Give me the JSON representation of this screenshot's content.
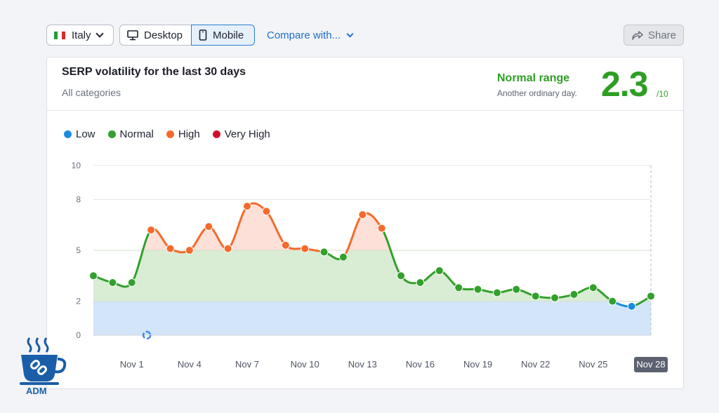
{
  "toolbar": {
    "country": "Italy",
    "device_options": [
      "Desktop",
      "Mobile"
    ],
    "selected_device": "Mobile",
    "compare_label": "Compare with...",
    "share_label": "Share"
  },
  "card": {
    "title": "SERP volatility for the last 30 days",
    "subtitle": "All categories",
    "range_label": "Normal range",
    "range_desc": "Another ordinary day.",
    "score": "2.3",
    "score_max": "/10"
  },
  "legend": [
    {
      "label": "Low",
      "color": "#1a8ce0"
    },
    {
      "label": "Normal",
      "color": "#32a02c"
    },
    {
      "label": "High",
      "color": "#f26b2c"
    },
    {
      "label": "Very High",
      "color": "#d0112b"
    }
  ],
  "colors": {
    "low_fill": "#d3e5f9",
    "normal_fill": "#d9ecd4",
    "high_fill": "#fde0d8",
    "gridline": "#e4e6ea",
    "accent_green": "#2e9e23"
  },
  "chart_data": {
    "type": "line",
    "title": "SERP volatility for the last 30 days",
    "xlabel": "",
    "ylabel": "",
    "ylim": [
      0,
      10
    ],
    "y_ticks": [
      0,
      2,
      5,
      8,
      10
    ],
    "x_tick_labels": [
      "Nov 1",
      "Nov 4",
      "Nov 7",
      "Nov 10",
      "Nov 13",
      "Nov 16",
      "Nov 19",
      "Nov 22",
      "Nov 25",
      "Nov 28"
    ],
    "x_tick_indices": [
      2,
      5,
      8,
      11,
      14,
      17,
      20,
      23,
      26,
      29
    ],
    "highlighted_x": "Nov 28",
    "bands": [
      {
        "name": "Low",
        "from": 0,
        "to": 2
      },
      {
        "name": "Normal",
        "from": 2,
        "to": 5
      },
      {
        "name": "High",
        "from": 5,
        "to": 8
      },
      {
        "name": "Very High",
        "from": 8,
        "to": 10
      }
    ],
    "dates": [
      "Oct 30",
      "Oct 31",
      "Nov 1",
      "Nov 2",
      "Nov 3",
      "Nov 4",
      "Nov 5",
      "Nov 6",
      "Nov 7",
      "Nov 8",
      "Nov 9",
      "Nov 10",
      "Nov 11",
      "Nov 12",
      "Nov 13",
      "Nov 14",
      "Nov 15",
      "Nov 16",
      "Nov 17",
      "Nov 18",
      "Nov 19",
      "Nov 20",
      "Nov 21",
      "Nov 22",
      "Nov 23",
      "Nov 24",
      "Nov 25",
      "Nov 26",
      "Nov 27",
      "Nov 28"
    ],
    "values": [
      3.5,
      3.1,
      3.1,
      6.2,
      5.1,
      5.0,
      6.4,
      5.1,
      7.6,
      7.3,
      5.3,
      5.1,
      4.9,
      4.6,
      7.1,
      6.3,
      3.5,
      3.1,
      3.8,
      2.8,
      2.7,
      2.5,
      2.7,
      2.3,
      2.2,
      2.4,
      2.8,
      2.0,
      1.7,
      2.3
    ]
  }
}
